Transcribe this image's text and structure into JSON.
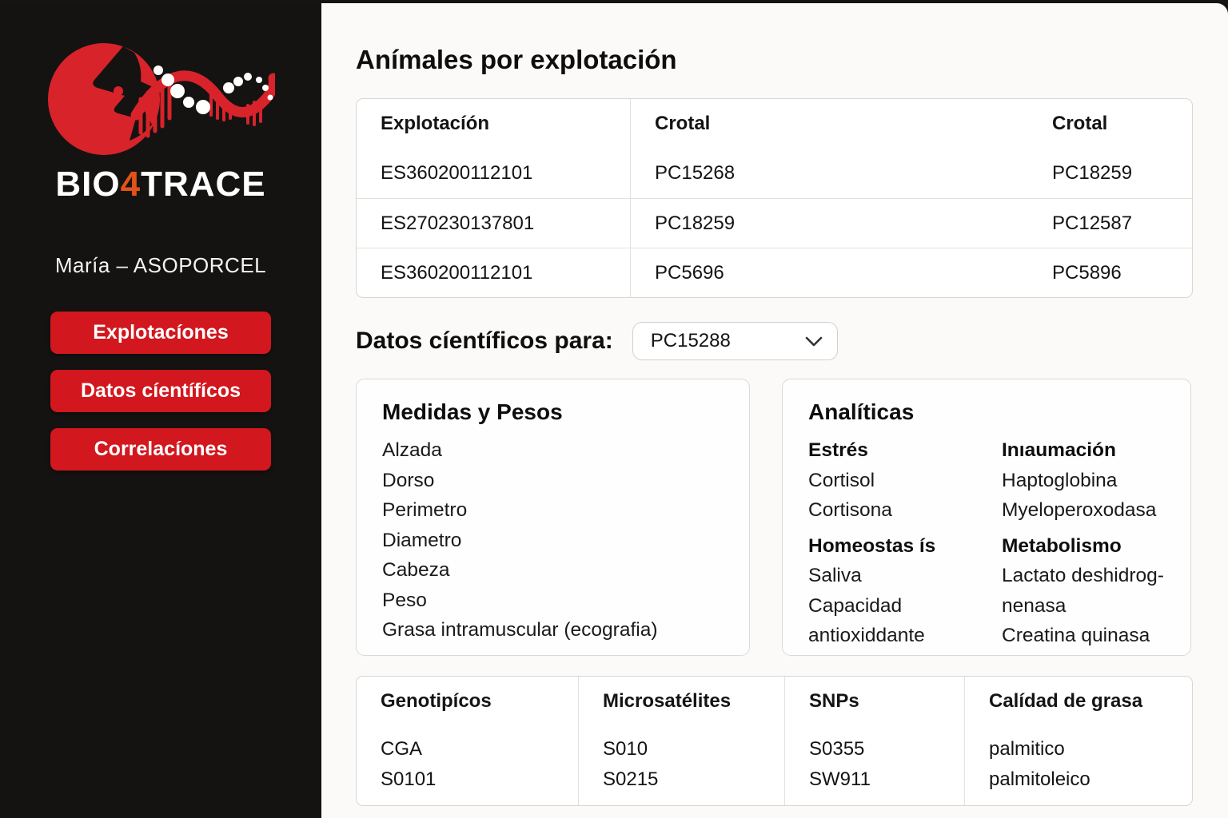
{
  "colors": {
    "accent_red": "#d2171e",
    "logo_red": "#d8232a",
    "logo_orange": "#e25318",
    "sidebar_bg": "#151312",
    "main_bg": "#fbfaf8"
  },
  "sidebar": {
    "logo": {
      "bio": "BIO",
      "four": "4",
      "trace": "TRACE"
    },
    "user": "María – ASOPORCEL",
    "buttons": [
      {
        "id": "explotaciones",
        "label": "Explotacíones"
      },
      {
        "id": "datos-cientificos",
        "label": "Datos cíentífícos"
      },
      {
        "id": "correlaciones",
        "label": "Correlacíones"
      }
    ]
  },
  "main": {
    "title": "Anímales por explotación",
    "animals_table": {
      "columns": [
        "Explotacíón",
        "Crotal",
        "Crotal"
      ],
      "rows": [
        [
          "ES360200112101",
          "PC15268",
          "PC18259"
        ],
        [
          "ES270230137801",
          "PC18259",
          "PC12587"
        ],
        [
          "ES360200112101",
          "PC5696",
          "PC5896"
        ]
      ]
    },
    "scientific_selector": {
      "label": "Datos cíentíficos para:",
      "selected_value": "PC15288"
    },
    "measures_card": {
      "title": "Medidas y Pesos",
      "items": [
        "Alzada",
        "Dorso",
        "Perimetro",
        "Diametro",
        "Cabeza",
        "Peso",
        "Grasa intramuscular (ecografia)"
      ]
    },
    "analytics_card": {
      "title": "Analíticas",
      "groups": [
        {
          "title": "Estrés",
          "items": [
            "Cortisol",
            "Cortisona"
          ]
        },
        {
          "title": "Inıaumación",
          "items": [
            "Haptoglobina",
            "Myeloperoxodasa"
          ]
        },
        {
          "title": "Homeostas ís",
          "items": [
            "Saliva",
            "Capacidad antioxiddante"
          ]
        },
        {
          "title": "Metabolismo",
          "items": [
            "Lactato deshidrog­nenasa",
            "Creatina quinasa"
          ]
        }
      ]
    },
    "genetics_table": {
      "columns": [
        {
          "header": "Genotipícos",
          "values": [
            "CGA",
            "S0101"
          ]
        },
        {
          "header": "Microsatélites",
          "values": [
            "S010",
            "S0215"
          ]
        },
        {
          "header": "SNPs",
          "values": [
            "S0355",
            "SW911"
          ]
        },
        {
          "header": "Calídad de grasa",
          "values": [
            "palmitico",
            "palmitoleico"
          ]
        }
      ]
    }
  }
}
